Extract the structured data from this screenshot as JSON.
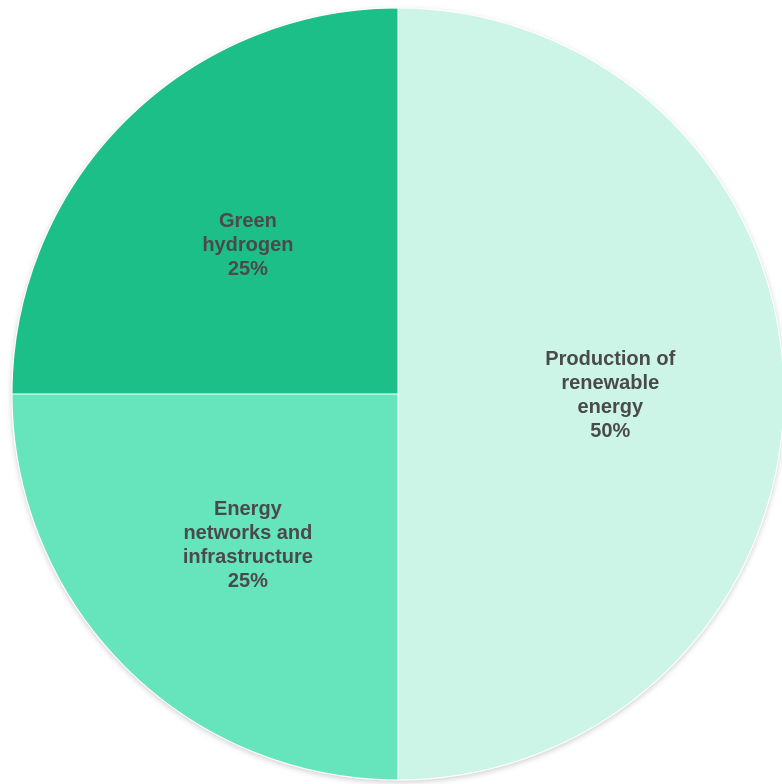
{
  "chart_data": {
    "type": "pie",
    "title": "",
    "slices": [
      {
        "label_lines": [
          "Production of",
          "renewable",
          "energy"
        ],
        "value": 50,
        "value_label": "50%",
        "color": "#ccf5e7"
      },
      {
        "label_lines": [
          "Energy",
          "networks and",
          "infrastructure"
        ],
        "value": 25,
        "value_label": "25%",
        "color": "#66e4bc"
      },
      {
        "label_lines": [
          "Green",
          "hydrogen"
        ],
        "value": 25,
        "value_label": "25%",
        "color": "#1fbf87"
      }
    ],
    "start_angle_deg": 0,
    "direction": "clockwise",
    "slice_border_color": "#ffffff",
    "label_color": "#4a4a4a",
    "legend": "none"
  }
}
